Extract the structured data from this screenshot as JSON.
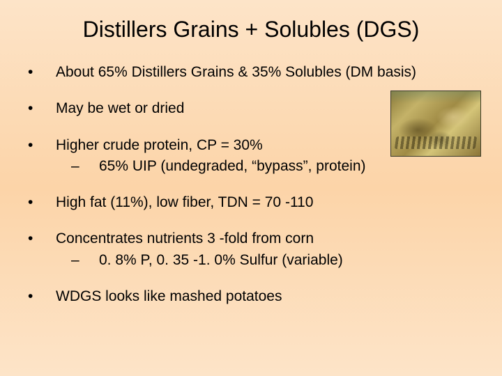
{
  "title": "Distillers Grains + Solubles (DGS)",
  "bullets": [
    {
      "text": "About 65% Distillers Grains & 35% Solubles (DM basis)"
    },
    {
      "text": "May be wet or dried"
    },
    {
      "text": "Higher crude protein, CP = 30%",
      "sub": "65% UIP (undegraded, “bypass”, protein)"
    },
    {
      "text": "High fat (11%), low fiber, TDN = 70 -110"
    },
    {
      "text": "Concentrates nutrients 3 -fold from corn",
      "sub": "0. 8% P, 0. 35 -1. 0% Sulfur (variable)"
    },
    {
      "text": "WDGS looks like mashed potatoes"
    }
  ],
  "marks": {
    "bullet": "•",
    "dash": "–"
  },
  "colors": {
    "bg_top": "#fde4c8",
    "bg_mid": "#fcd4a8",
    "text": "#000000"
  },
  "fontsize": {
    "title": 32,
    "body": 21
  }
}
